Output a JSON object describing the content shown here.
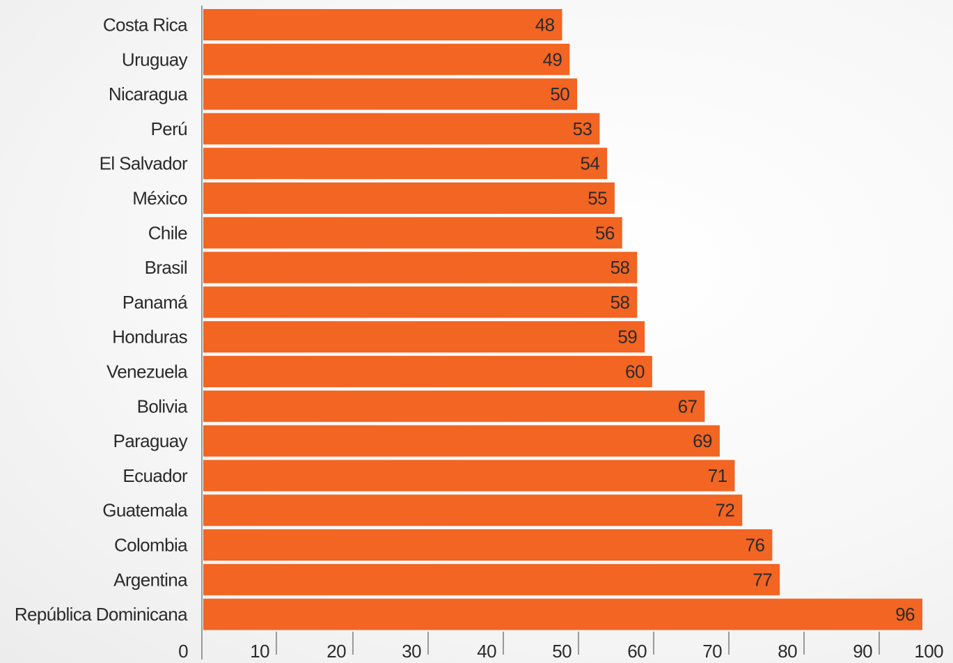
{
  "chart_data": {
    "type": "bar",
    "orientation": "horizontal",
    "title": "",
    "xlabel": "",
    "ylabel": "",
    "categories": [
      "Costa Rica",
      "Uruguay",
      "Nicaragua",
      "Perú",
      "El Salvador",
      "México",
      "Chile",
      "Brasil",
      "Panamá",
      "Honduras",
      "Venezuela",
      "Bolivia",
      "Paraguay",
      "Ecuador",
      "Guatemala",
      "Colombia",
      "Argentina",
      "República Dominicana"
    ],
    "values": [
      48,
      49,
      50,
      53,
      54,
      55,
      56,
      58,
      58,
      59,
      60,
      67,
      69,
      71,
      72,
      76,
      77,
      96
    ],
    "data_labels": [
      "48",
      "49",
      "50",
      "53",
      "54",
      "55",
      "56",
      "58",
      "58",
      "59",
      "60",
      "67",
      "69",
      "71",
      "72",
      "76",
      "77",
      "96"
    ],
    "xlim": [
      0,
      100
    ],
    "x_ticks": [
      0,
      10,
      20,
      30,
      40,
      50,
      60,
      70,
      80,
      90,
      100
    ],
    "x_tick_labels": [
      "0",
      "10",
      "20",
      "30",
      "40",
      "50",
      "60",
      "70",
      "80",
      "90",
      "100"
    ],
    "grid": false,
    "legend": "none",
    "bar_color": "#F26522",
    "axis_color": "#9a9a9a",
    "text_color": "#2b2b2b"
  }
}
